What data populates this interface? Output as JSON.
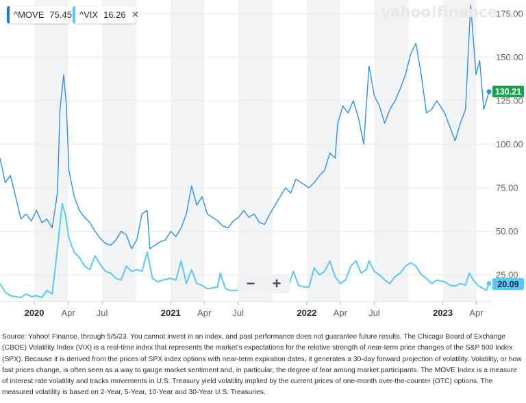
{
  "legend": {
    "move": {
      "symbol": "^MOVE",
      "value": "75.45",
      "color": "#1f78d1"
    },
    "vix": {
      "symbol": "^VIX",
      "value": "16.26",
      "color": "#5ac8f0"
    },
    "close_icon": "close-icon"
  },
  "logo": "yahoo!finance",
  "zoom": {
    "minus": "−",
    "plus": "+"
  },
  "badges": {
    "move": "130.21",
    "vix": "20.09"
  },
  "source_text": "Source: Yahoo! Finance, through 5/5/23. You cannot invest in an index, and past performance does not guarantee future results. The Chicago Board of Exchange (CBOE) Volatility Index (VIX) is a real-time index that represents the market's expectations for the relative strength of near-term price changes of the S&P 500 Index (SPX). Because it is derived from the prices of SPX index options with near-term expiration dates, it generates a 30-day forward projection of volatility. Volatility, or how fast prices change, is often seen as a way to gauge market sentiment and, in particular, the degree of fear among market participants. The MOVE Index is a measure of interest rate volatility and tracks movements in U.S. Treasury yield volatility implied by the current prices of one-month over-the-counter (OTC) options. The measured volatility is based on 2-Year, 5-Year, 10-Year and 30-Year U.S. Treasuries.",
  "chart_data": {
    "type": "line",
    "title": "",
    "x_ticks": [
      {
        "label": "2020",
        "date": "2020-01-01",
        "bold": true
      },
      {
        "label": "Apr",
        "date": "2020-04-01",
        "bold": false
      },
      {
        "label": "Jul",
        "date": "2020-07-01",
        "bold": false
      },
      {
        "label": "2021",
        "date": "2021-01-01",
        "bold": true
      },
      {
        "label": "Apr",
        "date": "2021-04-01",
        "bold": false
      },
      {
        "label": "Jul",
        "date": "2021-07-01",
        "bold": false
      },
      {
        "label": "2022",
        "date": "2022-01-01",
        "bold": true
      },
      {
        "label": "Apr",
        "date": "2022-04-01",
        "bold": false
      },
      {
        "label": "Jul",
        "date": "2022-07-01",
        "bold": false
      },
      {
        "label": "2023",
        "date": "2023-01-01",
        "bold": true
      },
      {
        "label": "Apr",
        "date": "2023-04-01",
        "bold": false
      }
    ],
    "y_ticks": [
      "175.00",
      "150.00",
      "125.00",
      "100.00",
      "75.00",
      "50.00",
      "25.00"
    ],
    "ylim": [
      10,
      180
    ],
    "grid": true,
    "series": [
      {
        "name": "^MOVE",
        "color": "#2f8de4",
        "points": [
          [
            "2019-10-01",
            92
          ],
          [
            "2019-10-15",
            78
          ],
          [
            "2019-10-29",
            82
          ],
          [
            "2019-11-12",
            70
          ],
          [
            "2019-11-26",
            57
          ],
          [
            "2019-12-10",
            60
          ],
          [
            "2019-12-24",
            56
          ],
          [
            "2020-01-07",
            62
          ],
          [
            "2020-01-21",
            55
          ],
          [
            "2020-02-04",
            57
          ],
          [
            "2020-02-18",
            52
          ],
          [
            "2020-03-03",
            72
          ],
          [
            "2020-03-10",
            120
          ],
          [
            "2020-03-20",
            140
          ],
          [
            "2020-03-27",
            122
          ],
          [
            "2020-04-03",
            85
          ],
          [
            "2020-04-17",
            70
          ],
          [
            "2020-05-01",
            62
          ],
          [
            "2020-05-15",
            58
          ],
          [
            "2020-05-29",
            55
          ],
          [
            "2020-06-12",
            50
          ],
          [
            "2020-06-26",
            46
          ],
          [
            "2020-07-10",
            43
          ],
          [
            "2020-07-24",
            42
          ],
          [
            "2020-08-07",
            45
          ],
          [
            "2020-08-21",
            50
          ],
          [
            "2020-09-04",
            48
          ],
          [
            "2020-09-18",
            40
          ],
          [
            "2020-10-02",
            45
          ],
          [
            "2020-10-16",
            60
          ],
          [
            "2020-10-30",
            62
          ],
          [
            "2020-11-06",
            40
          ],
          [
            "2020-11-20",
            42
          ],
          [
            "2020-12-04",
            44
          ],
          [
            "2020-12-18",
            45
          ],
          [
            "2021-01-01",
            50
          ],
          [
            "2021-01-15",
            47
          ],
          [
            "2021-01-29",
            52
          ],
          [
            "2021-02-12",
            60
          ],
          [
            "2021-02-26",
            76
          ],
          [
            "2021-03-12",
            65
          ],
          [
            "2021-03-26",
            70
          ],
          [
            "2021-04-09",
            60
          ],
          [
            "2021-04-23",
            58
          ],
          [
            "2021-05-07",
            56
          ],
          [
            "2021-05-21",
            53
          ],
          [
            "2021-06-04",
            52
          ],
          [
            "2021-06-18",
            56
          ],
          [
            "2021-07-02",
            58
          ],
          [
            "2021-07-16",
            62
          ],
          [
            "2021-07-30",
            58
          ],
          [
            "2021-08-13",
            60
          ],
          [
            "2021-08-27",
            55
          ],
          [
            "2021-09-10",
            54
          ],
          [
            "2021-09-24",
            60
          ],
          [
            "2021-10-08",
            65
          ],
          [
            "2021-10-22",
            70
          ],
          [
            "2021-11-05",
            75
          ],
          [
            "2021-11-19",
            72
          ],
          [
            "2021-12-03",
            80
          ],
          [
            "2021-12-17",
            78
          ],
          [
            "2022-01-07",
            75
          ],
          [
            "2022-01-21",
            78
          ],
          [
            "2022-02-04",
            82
          ],
          [
            "2022-02-18",
            85
          ],
          [
            "2022-03-04",
            95
          ],
          [
            "2022-03-18",
            92
          ],
          [
            "2022-03-25",
            112
          ],
          [
            "2022-04-08",
            122
          ],
          [
            "2022-04-22",
            118
          ],
          [
            "2022-05-06",
            125
          ],
          [
            "2022-05-20",
            115
          ],
          [
            "2022-06-03",
            100
          ],
          [
            "2022-06-17",
            145
          ],
          [
            "2022-07-01",
            128
          ],
          [
            "2022-07-15",
            122
          ],
          [
            "2022-07-29",
            112
          ],
          [
            "2022-08-12",
            120
          ],
          [
            "2022-08-26",
            125
          ],
          [
            "2022-09-09",
            132
          ],
          [
            "2022-09-23",
            140
          ],
          [
            "2022-10-07",
            152
          ],
          [
            "2022-10-21",
            158
          ],
          [
            "2022-11-04",
            140
          ],
          [
            "2022-11-18",
            118
          ],
          [
            "2022-12-02",
            120
          ],
          [
            "2022-12-16",
            125
          ],
          [
            "2023-01-06",
            118
          ],
          [
            "2023-01-20",
            110
          ],
          [
            "2023-02-03",
            102
          ],
          [
            "2023-02-17",
            112
          ],
          [
            "2023-03-03",
            120
          ],
          [
            "2023-03-13",
            165
          ],
          [
            "2023-03-17",
            180
          ],
          [
            "2023-03-31",
            140
          ],
          [
            "2023-04-10",
            148
          ],
          [
            "2023-04-21",
            120
          ],
          [
            "2023-05-05",
            130.21
          ]
        ]
      },
      {
        "name": "^VIX",
        "color": "#5ac8f0",
        "points": [
          [
            "2019-10-01",
            20
          ],
          [
            "2019-10-15",
            15
          ],
          [
            "2019-10-29",
            13
          ],
          [
            "2019-11-12",
            12.5
          ],
          [
            "2019-11-26",
            12
          ],
          [
            "2019-12-10",
            14
          ],
          [
            "2019-12-24",
            12.5
          ],
          [
            "2020-01-07",
            13
          ],
          [
            "2020-01-21",
            12
          ],
          [
            "2020-02-04",
            16
          ],
          [
            "2020-02-18",
            14
          ],
          [
            "2020-03-03",
            40
          ],
          [
            "2020-03-16",
            66
          ],
          [
            "2020-03-24",
            60
          ],
          [
            "2020-04-03",
            46
          ],
          [
            "2020-04-17",
            38
          ],
          [
            "2020-05-01",
            35
          ],
          [
            "2020-05-15",
            30
          ],
          [
            "2020-05-29",
            28
          ],
          [
            "2020-06-12",
            36
          ],
          [
            "2020-06-26",
            31
          ],
          [
            "2020-07-10",
            27
          ],
          [
            "2020-07-24",
            26
          ],
          [
            "2020-08-07",
            23
          ],
          [
            "2020-08-21",
            22
          ],
          [
            "2020-09-04",
            30
          ],
          [
            "2020-09-18",
            27
          ],
          [
            "2020-10-02",
            28
          ],
          [
            "2020-10-16",
            27
          ],
          [
            "2020-10-30",
            38
          ],
          [
            "2020-11-13",
            23
          ],
          [
            "2020-11-27",
            21
          ],
          [
            "2020-12-11",
            22
          ],
          [
            "2021-01-01",
            23
          ],
          [
            "2021-01-15",
            22
          ],
          [
            "2021-01-29",
            33
          ],
          [
            "2021-02-12",
            20
          ],
          [
            "2021-02-26",
            28
          ],
          [
            "2021-03-12",
            20
          ],
          [
            "2021-03-26",
            19
          ],
          [
            "2021-04-09",
            17
          ],
          [
            "2021-04-23",
            17.5
          ],
          [
            "2021-05-07",
            18
          ],
          [
            "2021-05-14",
            26
          ],
          [
            "2021-05-28",
            17
          ],
          [
            "2021-06-11",
            16
          ],
          [
            "2021-06-25",
            16
          ],
          [
            "2021-07-09",
            17
          ],
          [
            "2021-07-23",
            18
          ],
          [
            "2021-08-06",
            16
          ],
          [
            "2021-08-20",
            20
          ],
          [
            "2021-09-03",
            17
          ],
          [
            "2021-09-17",
            21
          ],
          [
            "2021-10-01",
            22
          ],
          [
            "2021-10-15",
            17
          ],
          [
            "2021-10-29",
            16
          ],
          [
            "2021-11-12",
            18
          ],
          [
            "2021-11-26",
            27
          ],
          [
            "2021-12-10",
            19
          ],
          [
            "2021-12-24",
            18
          ],
          [
            "2022-01-07",
            18
          ],
          [
            "2022-01-21",
            29
          ],
          [
            "2022-02-04",
            25
          ],
          [
            "2022-02-18",
            27
          ],
          [
            "2022-03-04",
            33
          ],
          [
            "2022-03-18",
            24
          ],
          [
            "2022-04-01",
            20
          ],
          [
            "2022-04-15",
            22
          ],
          [
            "2022-04-29",
            30
          ],
          [
            "2022-05-13",
            33
          ],
          [
            "2022-05-27",
            26
          ],
          [
            "2022-06-10",
            28
          ],
          [
            "2022-06-17",
            33
          ],
          [
            "2022-07-01",
            27
          ],
          [
            "2022-07-15",
            25
          ],
          [
            "2022-07-29",
            22
          ],
          [
            "2022-08-12",
            20
          ],
          [
            "2022-08-26",
            24
          ],
          [
            "2022-09-09",
            26
          ],
          [
            "2022-09-23",
            30
          ],
          [
            "2022-10-07",
            32
          ],
          [
            "2022-10-21",
            30
          ],
          [
            "2022-11-04",
            25
          ],
          [
            "2022-11-18",
            23
          ],
          [
            "2022-12-02",
            20
          ],
          [
            "2022-12-16",
            22
          ],
          [
            "2023-01-06",
            21
          ],
          [
            "2023-01-20",
            19
          ],
          [
            "2023-02-03",
            18.5
          ],
          [
            "2023-02-17",
            20
          ],
          [
            "2023-03-03",
            19
          ],
          [
            "2023-03-13",
            26
          ],
          [
            "2023-03-24",
            22
          ],
          [
            "2023-04-07",
            18.5
          ],
          [
            "2023-04-21",
            17
          ],
          [
            "2023-04-28",
            16
          ],
          [
            "2023-05-05",
            20.09
          ]
        ]
      }
    ]
  }
}
